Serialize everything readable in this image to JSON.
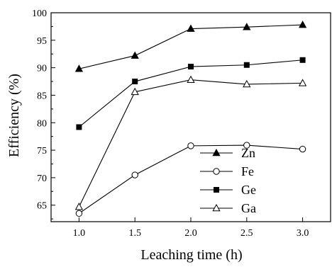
{
  "chart_data": {
    "type": "line",
    "xlabel": "Leaching time (h)",
    "ylabel": "Efficiency (%)",
    "x": [
      1.0,
      1.5,
      2.0,
      2.5,
      3.0
    ],
    "xlim": [
      0.75,
      3.25
    ],
    "ylim": [
      62,
      100
    ],
    "xticks": [
      1.0,
      1.5,
      2.0,
      2.5,
      3.0
    ],
    "xtick_labels": [
      "1.0",
      "1.5",
      "2.0",
      "2.5",
      "3.0"
    ],
    "yticks": [
      65,
      70,
      75,
      80,
      85,
      90,
      95,
      100
    ],
    "ytick_labels": [
      "65",
      "70",
      "75",
      "80",
      "85",
      "90",
      "95",
      "100"
    ],
    "grid": false,
    "legend_position": "inside-lower-center",
    "series": [
      {
        "name": "Zn",
        "marker": "triangle-filled",
        "values": [
          89.8,
          92.2,
          97.1,
          97.4,
          97.8
        ]
      },
      {
        "name": "Fe",
        "marker": "circle-open",
        "values": [
          63.5,
          70.5,
          75.8,
          75.9,
          75.2
        ]
      },
      {
        "name": "Ge",
        "marker": "square-filled",
        "values": [
          79.2,
          87.5,
          90.2,
          90.5,
          91.4
        ]
      },
      {
        "name": "Ga",
        "marker": "triangle-open",
        "values": [
          64.7,
          85.6,
          87.8,
          87.0,
          87.2
        ]
      }
    ]
  }
}
